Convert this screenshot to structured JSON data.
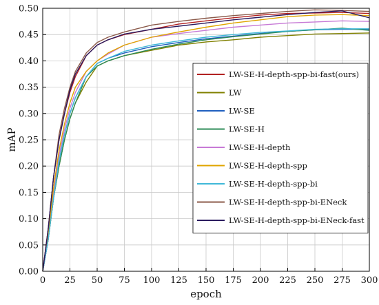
{
  "chart_data": {
    "type": "line",
    "xlabel": "epoch",
    "ylabel": "mAP",
    "xlim": [
      0,
      300
    ],
    "ylim": [
      0.0,
      0.5
    ],
    "xticks": [
      "0",
      "25",
      "50",
      "75",
      "100",
      "125",
      "150",
      "175",
      "200",
      "225",
      "250",
      "275",
      "300"
    ],
    "yticks": [
      "0.00",
      "0.05",
      "0.10",
      "0.15",
      "0.20",
      "0.25",
      "0.30",
      "0.35",
      "0.40",
      "0.45",
      "0.50"
    ],
    "grid": true,
    "legend_position": "right",
    "x": [
      0,
      5,
      10,
      15,
      20,
      25,
      30,
      40,
      50,
      60,
      75,
      100,
      125,
      150,
      175,
      200,
      225,
      250,
      275,
      300
    ],
    "series": [
      {
        "name": "LW-SE-H-depth-spp-bi-fast(ours)",
        "color": "#b22222",
        "values": [
          0.0,
          0.08,
          0.18,
          0.25,
          0.3,
          0.34,
          0.37,
          0.41,
          0.43,
          0.44,
          0.45,
          0.46,
          0.47,
          0.476,
          0.482,
          0.487,
          0.49,
          0.491,
          0.492,
          0.49
        ]
      },
      {
        "name": "LW",
        "color": "#808000",
        "values": [
          0.0,
          0.06,
          0.14,
          0.2,
          0.25,
          0.29,
          0.32,
          0.36,
          0.39,
          0.4,
          0.41,
          0.42,
          0.43,
          0.436,
          0.44,
          0.445,
          0.448,
          0.451,
          0.452,
          0.453
        ]
      },
      {
        "name": "LW-SE",
        "color": "#1f5fbf",
        "values": [
          0.0,
          0.06,
          0.14,
          0.21,
          0.26,
          0.3,
          0.33,
          0.37,
          0.395,
          0.405,
          0.415,
          0.427,
          0.435,
          0.442,
          0.447,
          0.452,
          0.456,
          0.459,
          0.46,
          0.46
        ]
      },
      {
        "name": "LW-SE-H",
        "color": "#2e8b57",
        "values": [
          0.0,
          0.06,
          0.14,
          0.2,
          0.25,
          0.29,
          0.32,
          0.37,
          0.39,
          0.4,
          0.41,
          0.422,
          0.432,
          0.44,
          0.446,
          0.451,
          0.456,
          0.459,
          0.462,
          0.458
        ]
      },
      {
        "name": "LW-SE-H-depth",
        "color": "#c77ad6",
        "values": [
          0.0,
          0.06,
          0.15,
          0.22,
          0.27,
          0.31,
          0.34,
          0.38,
          0.4,
          0.413,
          0.43,
          0.445,
          0.452,
          0.458,
          0.464,
          0.468,
          0.472,
          0.474,
          0.476,
          0.475
        ]
      },
      {
        "name": "LW-SE-H-depth-spp",
        "color": "#e0a500",
        "values": [
          0.0,
          0.07,
          0.16,
          0.23,
          0.28,
          0.32,
          0.35,
          0.38,
          0.4,
          0.415,
          0.43,
          0.445,
          0.455,
          0.464,
          0.472,
          0.478,
          0.484,
          0.487,
          0.488,
          0.486
        ]
      },
      {
        "name": "LW-SE-H-depth-spp-bi",
        "color": "#3fb8d8",
        "values": [
          0.0,
          0.06,
          0.14,
          0.21,
          0.26,
          0.3,
          0.33,
          0.37,
          0.395,
          0.405,
          0.418,
          0.43,
          0.438,
          0.445,
          0.45,
          0.454,
          0.457,
          0.46,
          0.461,
          0.461
        ]
      },
      {
        "name": "LW-SE-H-depth-spp-bi-ENeck",
        "color": "#8b5a4a",
        "values": [
          0.0,
          0.08,
          0.18,
          0.26,
          0.31,
          0.35,
          0.38,
          0.415,
          0.435,
          0.445,
          0.455,
          0.468,
          0.475,
          0.481,
          0.486,
          0.49,
          0.494,
          0.497,
          0.496,
          0.494
        ]
      },
      {
        "name": "LW-SE-H-depth-spp-bi-ENeck-fast",
        "color": "#2a1a5e",
        "values": [
          0.0,
          0.08,
          0.18,
          0.25,
          0.3,
          0.345,
          0.375,
          0.41,
          0.43,
          0.44,
          0.451,
          0.46,
          0.466,
          0.472,
          0.478,
          0.483,
          0.488,
          0.492,
          0.495,
          0.482
        ]
      }
    ]
  }
}
